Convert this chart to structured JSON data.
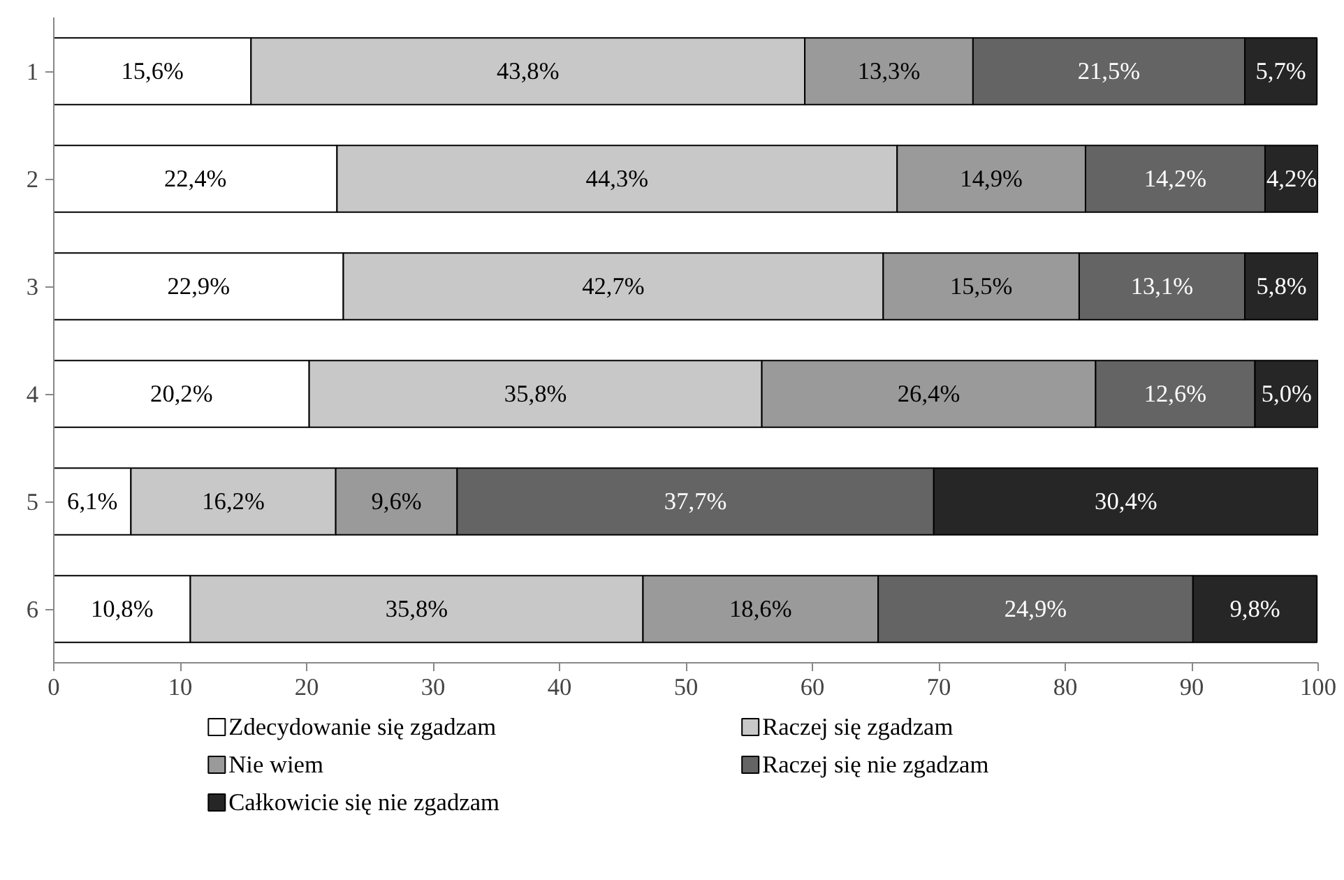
{
  "chart_data": {
    "type": "bar",
    "orientation": "horizontal",
    "stacked": true,
    "categories": [
      "1",
      "2",
      "3",
      "4",
      "5",
      "6"
    ],
    "xlim": [
      0,
      100
    ],
    "xticks": [
      0,
      10,
      20,
      30,
      40,
      50,
      60,
      70,
      80,
      90,
      100
    ],
    "grid": false,
    "legend": "bottom",
    "series": [
      {
        "name": "Zdecydowanie się zgadzam",
        "color": "#ffffff",
        "values": [
          15.6,
          22.4,
          22.9,
          20.2,
          6.1,
          10.8
        ],
        "value_labels": [
          "15,6%",
          "22,4%",
          "22,9%",
          "20,2%",
          "6,1%",
          "10,8%"
        ]
      },
      {
        "name": "Raczej się zgadzam",
        "color": "#c8c8c8",
        "values": [
          43.8,
          44.3,
          42.7,
          35.8,
          16.2,
          35.8
        ],
        "value_labels": [
          "43,8%",
          "44,3%",
          "42,7%",
          "35,8%",
          "16,2%",
          "35,8%"
        ]
      },
      {
        "name": "Nie wiem",
        "color": "#9a9a9a",
        "values": [
          13.3,
          14.9,
          15.5,
          26.4,
          9.6,
          18.6
        ],
        "value_labels": [
          "13,3%",
          "14,9%",
          "15,5%",
          "26,4%",
          "9,6%",
          "18,6%"
        ]
      },
      {
        "name": "Raczej się nie zgadzam",
        "color": "#646464",
        "values": [
          21.5,
          14.2,
          13.1,
          12.6,
          37.7,
          24.9
        ],
        "value_labels": [
          "21,5%",
          "14,2%",
          "13,1%",
          "12,6%",
          "37,7%",
          "24,9%"
        ]
      },
      {
        "name": "Całkowicie się nie zgadzam",
        "color": "#262626",
        "values": [
          5.7,
          4.2,
          5.8,
          5.0,
          30.4,
          9.8
        ],
        "value_labels": [
          "5,7%",
          "4,2%",
          "5,8%",
          "5,0%",
          "30,4%",
          "9,8%"
        ]
      }
    ]
  }
}
